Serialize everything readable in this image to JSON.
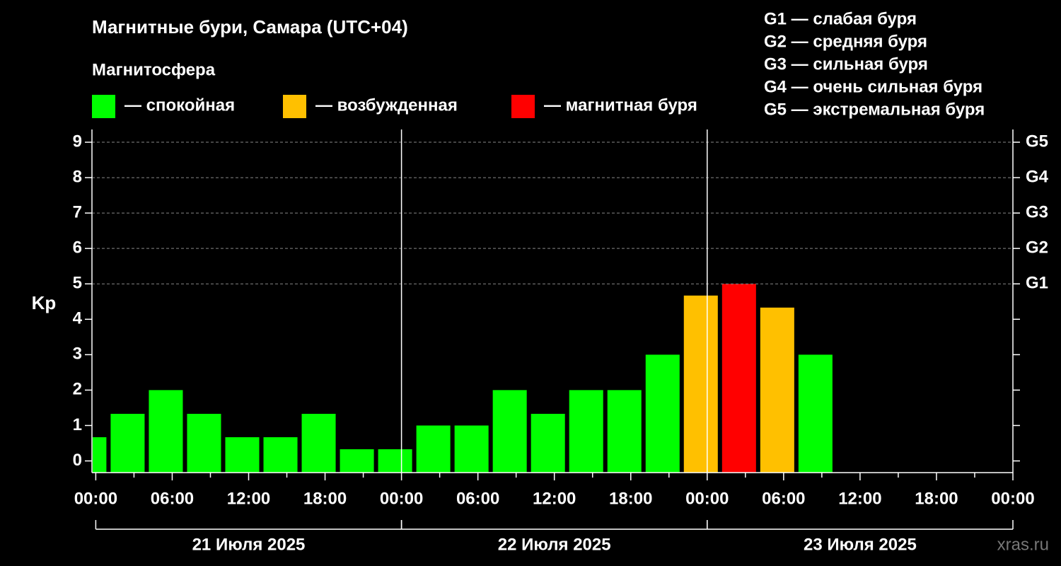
{
  "chart_data": {
    "type": "bar",
    "title": "Магнитные бури, Самара (UTC+04)",
    "y_label": "Kp",
    "legend": {
      "title": "Магнитосфера",
      "items": [
        {
          "label": "— спокойная",
          "color": "#00ff00"
        },
        {
          "label": "— возбужденная",
          "color": "#ffc000"
        },
        {
          "label": "— магнитная буря",
          "color": "#ff0000"
        }
      ]
    },
    "storm_scale": [
      "G1 — слабая буря",
      "G2 — средняя буря",
      "G3 — сильная буря",
      "G4 — очень сильная буря",
      "G5 — экстремальная буря"
    ],
    "x": [
      -0.5,
      2.5,
      5.5,
      8.5,
      11.5,
      14.5,
      17.5,
      20.5,
      23.5,
      26.5,
      29.5,
      32.5,
      35.5,
      38.5,
      41.5,
      44.5,
      47.5,
      50.5,
      53.5,
      56.5
    ],
    "bar_span": 3,
    "values": [
      0.67,
      1.33,
      2,
      1.33,
      0.67,
      0.67,
      1.33,
      0.33,
      0.33,
      1,
      1,
      2,
      1.33,
      2,
      2,
      3,
      4.67,
      5,
      4.33,
      3
    ],
    "colors": [
      "#00ff00",
      "#00ff00",
      "#00ff00",
      "#00ff00",
      "#00ff00",
      "#00ff00",
      "#00ff00",
      "#00ff00",
      "#00ff00",
      "#00ff00",
      "#00ff00",
      "#00ff00",
      "#00ff00",
      "#00ff00",
      "#00ff00",
      "#00ff00",
      "#ffc000",
      "#ff0000",
      "#ffc000",
      "#00ff00"
    ],
    "xlim": [
      -0.3,
      72
    ],
    "xticks": [
      {
        "value": 0,
        "label": "00:00"
      },
      {
        "value": 6,
        "label": "06:00"
      },
      {
        "value": 12,
        "label": "12:00"
      },
      {
        "value": 18,
        "label": "18:00"
      },
      {
        "value": 24,
        "label": "00:00"
      },
      {
        "value": 30,
        "label": "06:00"
      },
      {
        "value": 36,
        "label": "12:00"
      },
      {
        "value": 42,
        "label": "18:00"
      },
      {
        "value": 48,
        "label": "00:00"
      },
      {
        "value": 54,
        "label": "06:00"
      },
      {
        "value": 60,
        "label": "12:00"
      },
      {
        "value": 66,
        "label": "18:00"
      },
      {
        "value": 72,
        "label": "00:00"
      }
    ],
    "xminorticks": [
      3,
      9,
      15,
      21,
      27,
      33,
      39,
      45,
      51,
      57,
      63,
      69
    ],
    "days": [
      {
        "label": "21 Июля 2025",
        "start": 0,
        "end": 24
      },
      {
        "label": "22 Июля 2025",
        "start": 24,
        "end": 48
      },
      {
        "label": "23 Июля 2025",
        "start": 48,
        "end": 72
      }
    ],
    "ylim": [
      -0.33,
      9.36
    ],
    "yticks": [
      0,
      1,
      2,
      3,
      4,
      5,
      6,
      7,
      8,
      9
    ],
    "y2lim": [
      -0.33,
      9.36
    ],
    "y2ticks": [
      {
        "value": 5,
        "label": "G1"
      },
      {
        "value": 6,
        "label": "G2"
      },
      {
        "value": 7,
        "label": "G3"
      },
      {
        "value": 8,
        "label": "G4"
      },
      {
        "value": 9,
        "label": "G5"
      }
    ],
    "grid": true,
    "watermark": "xras.ru"
  }
}
